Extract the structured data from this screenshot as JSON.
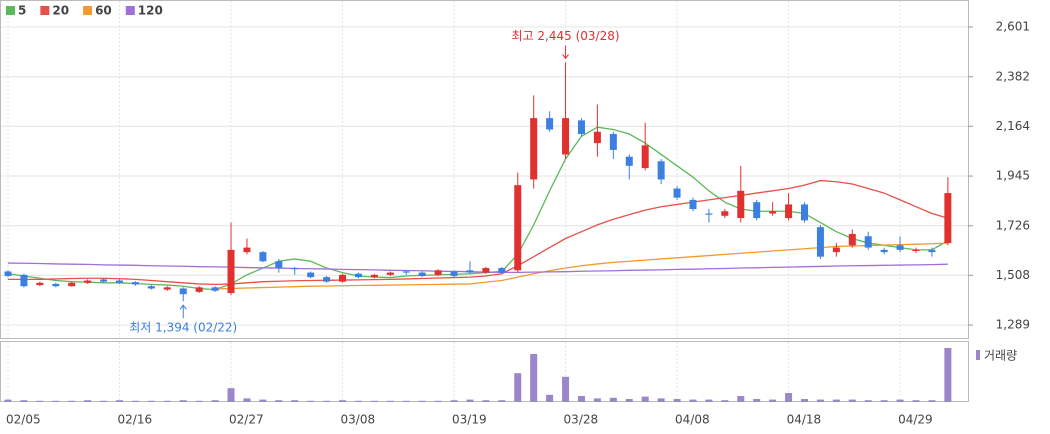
{
  "chart_data": {
    "type": "candlestick",
    "categories": [
      "02/05",
      null,
      null,
      null,
      null,
      null,
      null,
      "02/16",
      null,
      null,
      null,
      null,
      null,
      null,
      "02/27",
      null,
      null,
      null,
      null,
      null,
      null,
      "03/08",
      null,
      null,
      null,
      null,
      null,
      null,
      "03/19",
      null,
      null,
      null,
      null,
      null,
      null,
      "03/28",
      null,
      null,
      null,
      null,
      null,
      null,
      "04/08",
      null,
      null,
      null,
      null,
      null,
      null,
      "04/18",
      null,
      null,
      null,
      null,
      null,
      null,
      "04/29",
      null,
      null,
      null
    ],
    "open": [
      1525,
      1510,
      1465,
      1470,
      1460,
      1475,
      1490,
      1485,
      1478,
      1460,
      1445,
      1450,
      1435,
      1455,
      1430,
      1610,
      1610,
      1570,
      1540,
      1520,
      1500,
      1480,
      1515,
      1500,
      1510,
      1525,
      1520,
      1510,
      1525,
      1530,
      1520,
      1540,
      1530,
      1930,
      2200,
      2040,
      2190,
      2090,
      2130,
      2030,
      1980,
      2010,
      1890,
      1840,
      1780,
      1770,
      1760,
      1830,
      1780,
      1760,
      1820,
      1720,
      1610,
      1640,
      1680,
      1620,
      1640,
      1615,
      1620,
      1650
    ],
    "high": [
      1530,
      1515,
      1480,
      1475,
      1478,
      1490,
      1495,
      1490,
      1482,
      1465,
      1460,
      1455,
      1460,
      1460,
      1740,
      1670,
      1615,
      1580,
      1545,
      1525,
      1505,
      1515,
      1520,
      1515,
      1525,
      1530,
      1525,
      1535,
      1530,
      1570,
      1545,
      1545,
      1960,
      2300,
      2230,
      2445,
      2200,
      2260,
      2140,
      2040,
      2180,
      2020,
      1900,
      1850,
      1800,
      1800,
      1990,
      1840,
      1830,
      1870,
      1830,
      1730,
      1650,
      1710,
      1700,
      1630,
      1680,
      1630,
      1630,
      1940
    ],
    "low": [
      1500,
      1455,
      1460,
      1455,
      1458,
      1470,
      1475,
      1470,
      1462,
      1445,
      1440,
      1394,
      1430,
      1435,
      1420,
      1600,
      1565,
      1520,
      1510,
      1495,
      1475,
      1475,
      1495,
      1495,
      1505,
      1510,
      1500,
      1505,
      1500,
      1515,
      1515,
      1515,
      1520,
      1890,
      2140,
      2020,
      2120,
      2030,
      2020,
      1930,
      1970,
      1910,
      1840,
      1790,
      1740,
      1760,
      1740,
      1750,
      1770,
      1750,
      1740,
      1580,
      1590,
      1630,
      1620,
      1600,
      1610,
      1605,
      1590,
      1640
    ],
    "close": [
      1505,
      1460,
      1475,
      1460,
      1475,
      1485,
      1480,
      1475,
      1468,
      1450,
      1455,
      1425,
      1455,
      1440,
      1620,
      1630,
      1570,
      1540,
      1535,
      1500,
      1480,
      1510,
      1500,
      1510,
      1520,
      1520,
      1505,
      1530,
      1505,
      1520,
      1540,
      1520,
      1905,
      2200,
      2150,
      2200,
      2130,
      2140,
      2060,
      1990,
      2080,
      1930,
      1850,
      1800,
      1775,
      1790,
      1880,
      1760,
      1790,
      1820,
      1750,
      1590,
      1630,
      1690,
      1630,
      1610,
      1620,
      1620,
      1610,
      1870
    ],
    "up_color": "#e0302f",
    "down_color": "#3b7fe0",
    "series": [
      {
        "name": "5",
        "color": "#5cb85c",
        "values": [
          1515,
          1505,
          1495,
          1485,
          1480,
          1478,
          1475,
          1475,
          1472,
          1468,
          1465,
          1460,
          1450,
          1445,
          1470,
          1510,
          1540,
          1570,
          1580,
          1570,
          1540,
          1520,
          1505,
          1500,
          1498,
          1505,
          1508,
          1510,
          1512,
          1515,
          1520,
          1525,
          1600,
          1730,
          1880,
          2020,
          2120,
          2160,
          2150,
          2130,
          2090,
          2040,
          1990,
          1940,
          1880,
          1830,
          1800,
          1790,
          1790,
          1790,
          1780,
          1740,
          1700,
          1670,
          1650,
          1640,
          1630,
          1620,
          1620,
          1660
        ]
      },
      {
        "name": "20",
        "color": "#e8504a",
        "values": [
          1490,
          1490,
          1490,
          1492,
          1494,
          1495,
          1495,
          1493,
          1490,
          1485,
          1480,
          1475,
          1470,
          1468,
          1470,
          1475,
          1480,
          1482,
          1484,
          1485,
          1486,
          1487,
          1488,
          1489,
          1490,
          1492,
          1494,
          1496,
          1498,
          1500,
          1505,
          1515,
          1550,
          1590,
          1630,
          1670,
          1700,
          1730,
          1755,
          1775,
          1795,
          1810,
          1820,
          1830,
          1840,
          1850,
          1860,
          1870,
          1880,
          1890,
          1905,
          1925,
          1920,
          1910,
          1890,
          1870,
          1840,
          1810,
          1780,
          1760
        ]
      },
      {
        "name": "60",
        "color": "#f39a2e",
        "values": [
          null,
          null,
          null,
          null,
          null,
          null,
          null,
          null,
          null,
          null,
          null,
          null,
          null,
          1448,
          1450,
          1452,
          1454,
          1456,
          1458,
          1460,
          1461,
          1462,
          1463,
          1464,
          1465,
          1466,
          1467,
          1468,
          1469,
          1470,
          1478,
          1485,
          1500,
          1515,
          1528,
          1540,
          1550,
          1558,
          1565,
          1570,
          1575,
          1580,
          1585,
          1590,
          1595,
          1600,
          1605,
          1610,
          1615,
          1620,
          1625,
          1630,
          1635,
          1637,
          1639,
          1641,
          1643,
          1645,
          1647,
          1650
        ]
      },
      {
        "name": "120",
        "color": "#a070d8",
        "values": [
          1562,
          1561,
          1560,
          1558,
          1557,
          1556,
          1554,
          1553,
          1552,
          1550,
          1549,
          1548,
          1546,
          1545,
          1544,
          1542,
          1541,
          1540,
          1538,
          1537,
          1536,
          1534,
          1533,
          1532,
          1530,
          1529,
          1528,
          1526,
          1525,
          1524,
          1522,
          1521,
          1521,
          1522,
          1523,
          1524,
          1526,
          1527,
          1528,
          1530,
          1531,
          1532,
          1534,
          1535,
          1537,
          1538,
          1540,
          1541,
          1543,
          1544,
          1546,
          1547,
          1549,
          1550,
          1551,
          1552,
          1553,
          1554,
          1555,
          1557
        ]
      }
    ],
    "volume": {
      "name": "거래량",
      "color": "#9b86c9",
      "ylim": [
        0,
        100
      ],
      "values": [
        4,
        3,
        2,
        2,
        2,
        3,
        2,
        3,
        2,
        2,
        2,
        3,
        2,
        3,
        23,
        6,
        4,
        3,
        3,
        2,
        2,
        3,
        2,
        2,
        2,
        2,
        2,
        2,
        3,
        4,
        3,
        3,
        48,
        80,
        12,
        42,
        10,
        6,
        7,
        5,
        9,
        6,
        5,
        4,
        4,
        3,
        10,
        5,
        4,
        15,
        5,
        4,
        4,
        4,
        3,
        3,
        4,
        3,
        3,
        90
      ]
    },
    "ylim": [
      1232,
      2720
    ],
    "yticks": [
      {
        "value": 1289,
        "label": "1,289"
      },
      {
        "value": 1508,
        "label": "1,508"
      },
      {
        "value": 1726,
        "label": "1,726"
      },
      {
        "value": 1945,
        "label": "1,945"
      },
      {
        "value": 2164,
        "label": "2,164"
      },
      {
        "value": 2382,
        "label": "2,382"
      },
      {
        "value": 2601,
        "label": "2,601"
      }
    ],
    "grid": true,
    "annotations": [
      {
        "text": "최고 2,445 (03/28)",
        "color": "#e0302f"
      },
      {
        "text": "최저 1,394 (02/22)",
        "color": "#3b7fe0"
      }
    ]
  }
}
